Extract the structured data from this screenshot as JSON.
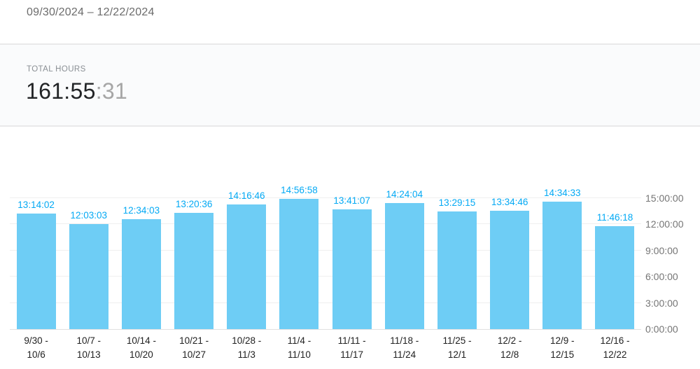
{
  "header": {
    "date_range": "09/30/2024 – 12/22/2024"
  },
  "summary": {
    "label": "TOTAL HOURS",
    "value_hours_minutes": "161:55",
    "value_seconds": ":31"
  },
  "colors": {
    "bar_fill": "#6ECDF5",
    "value_label": "#03A9F4",
    "axis_text": "#757575",
    "x_label_text": "#1f1f1f"
  },
  "chart_data": {
    "type": "bar",
    "title": "",
    "xlabel": "",
    "ylabel": "",
    "categories": [
      "9/30 - 10/6",
      "10/7 - 10/13",
      "10/14 - 10/20",
      "10/21 - 10/27",
      "10/28 - 11/3",
      "11/4 - 11/10",
      "11/11 - 11/17",
      "11/18 - 11/24",
      "11/25 - 12/1",
      "12/2 - 12/8",
      "12/9 - 12/15",
      "12/16 - 12/22"
    ],
    "values": [
      "13:14:02",
      "12:03:03",
      "12:34:03",
      "13:20:36",
      "14:16:46",
      "14:56:58",
      "13:41:07",
      "14:24:04",
      "13:29:15",
      "13:34:46",
      "14:34:33",
      "11:46:18"
    ],
    "y_ticks": [
      "0:00:00",
      "3:00:00",
      "6:00:00",
      "9:00:00",
      "12:00:00",
      "15:00:00"
    ],
    "ylim": [
      "0:00:00",
      "16:00:00"
    ],
    "yaxis_side": "right",
    "grid": "horizontal",
    "legend": "none",
    "bar_color": "#6ECDF5",
    "value_label_color": "#03A9F4"
  }
}
